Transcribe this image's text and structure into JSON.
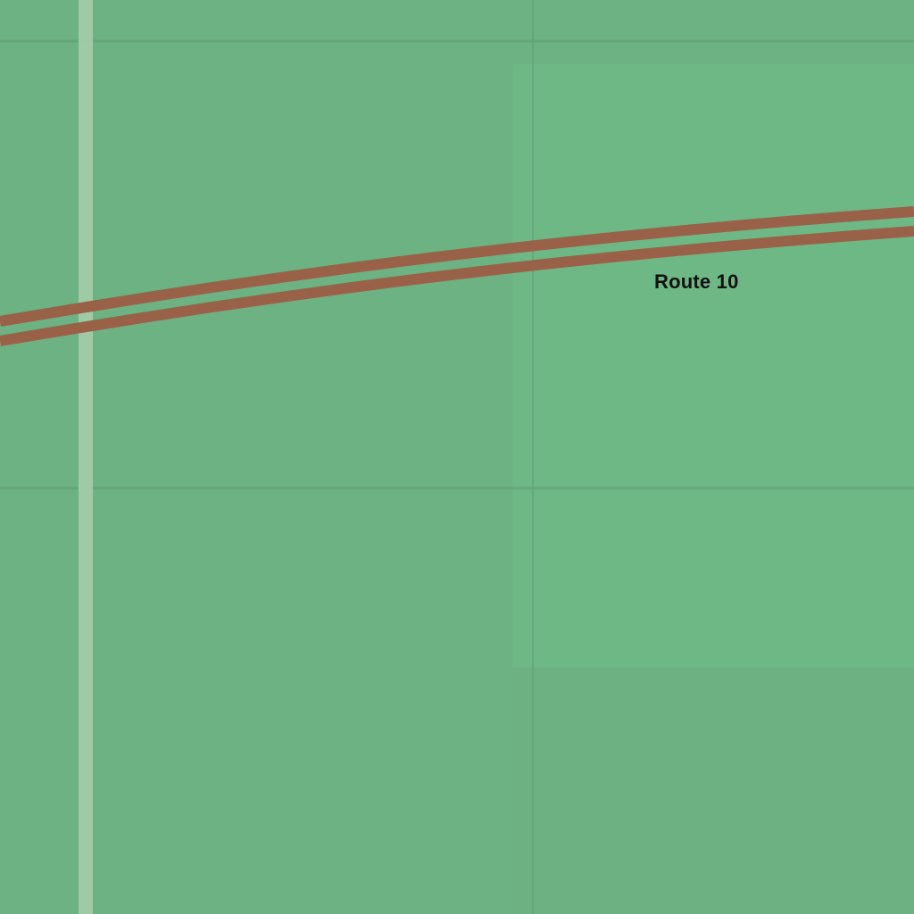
{
  "map": {
    "colors": {
      "land": "#6cb282",
      "land_light_area": "#6db885",
      "land_lower_right": "#6db182",
      "grid_line": "#629f77",
      "path": "#a7cfac",
      "road": "#996148"
    },
    "features": {
      "road": {
        "name": "Route 10",
        "type": "railway-style double line"
      },
      "path": {
        "type": "footpath"
      }
    }
  }
}
